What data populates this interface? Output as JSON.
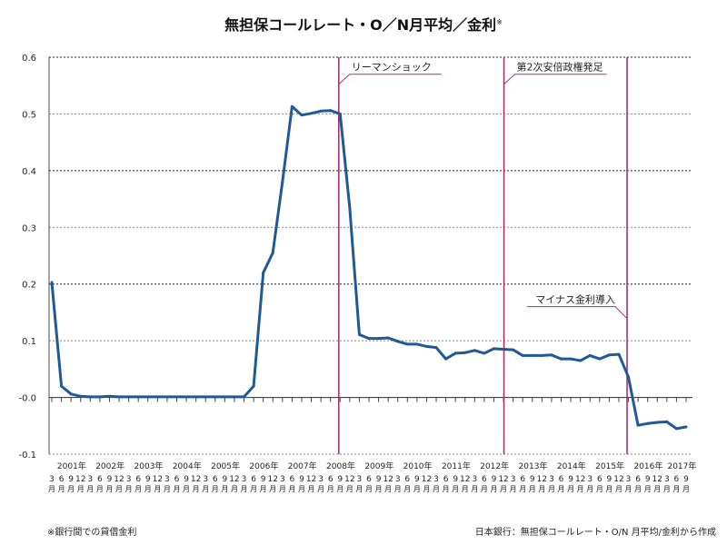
{
  "chart_data": {
    "type": "line",
    "title": "無担保コールレート・O／N月平均／金利",
    "title_mark": "※",
    "xlabel": "",
    "ylabel": "",
    "ylim": [
      -0.1,
      0.6
    ],
    "yticks": [
      "0.6",
      "0.5",
      "0.4",
      "0.3",
      "0.2",
      "0.1",
      "-0.0",
      "-0.1"
    ],
    "ytick_values": [
      0.6,
      0.5,
      0.4,
      0.3,
      0.2,
      0.1,
      0,
      -0.1
    ],
    "grid": true,
    "years": [
      "2001年",
      "2002年",
      "2003年",
      "2004年",
      "2005年",
      "2006年",
      "2007年",
      "2008年",
      "2009年",
      "2010年",
      "2011年",
      "2012年",
      "2013年",
      "2014年",
      "2015年",
      "2016年",
      "2017年"
    ],
    "month_labels": [
      "3",
      "6",
      "9",
      "12"
    ],
    "month_suffix": "月",
    "series": [
      {
        "color": "#1f5a96",
        "values": [
          0.203,
          0.02,
          0.006,
          0.002,
          0.001,
          0.001,
          0.002,
          0.001,
          0.001,
          0.001,
          0.001,
          0.001,
          0.001,
          0.001,
          0.001,
          0.001,
          0.001,
          0.001,
          0.001,
          0.001,
          0.001,
          0.02,
          0.22,
          0.255,
          0.38,
          0.513,
          0.498,
          0.501,
          0.505,
          0.506,
          0.5,
          0.335,
          0.111,
          0.104,
          0.104,
          0.105,
          0.099,
          0.094,
          0.094,
          0.09,
          0.088,
          0.068,
          0.078,
          0.079,
          0.083,
          0.078,
          0.086,
          0.085,
          0.084,
          0.074,
          0.074,
          0.074,
          0.075,
          0.068,
          0.068,
          0.065,
          0.074,
          0.068,
          0.075,
          0.076,
          0.036,
          -0.049,
          -0.046,
          -0.044,
          -0.043,
          -0.055,
          -0.052
        ]
      }
    ],
    "annotations": [
      {
        "label": "リーマンショック",
        "index": 30,
        "side": "right",
        "label_level": 0.57
      },
      {
        "label": "第2次安倍政権発足",
        "index": 47,
        "side": "right",
        "label_level": 0.57
      },
      {
        "label": "マイナス金利導入",
        "index": 60,
        "side": "left",
        "label_level": 0.16
      }
    ],
    "annotation_color": "#a3326f"
  },
  "footer": {
    "note": "※銀行間での貸借金利",
    "source": "日本銀行：無担保コールレート・O/N 月平均/金利から作成"
  }
}
